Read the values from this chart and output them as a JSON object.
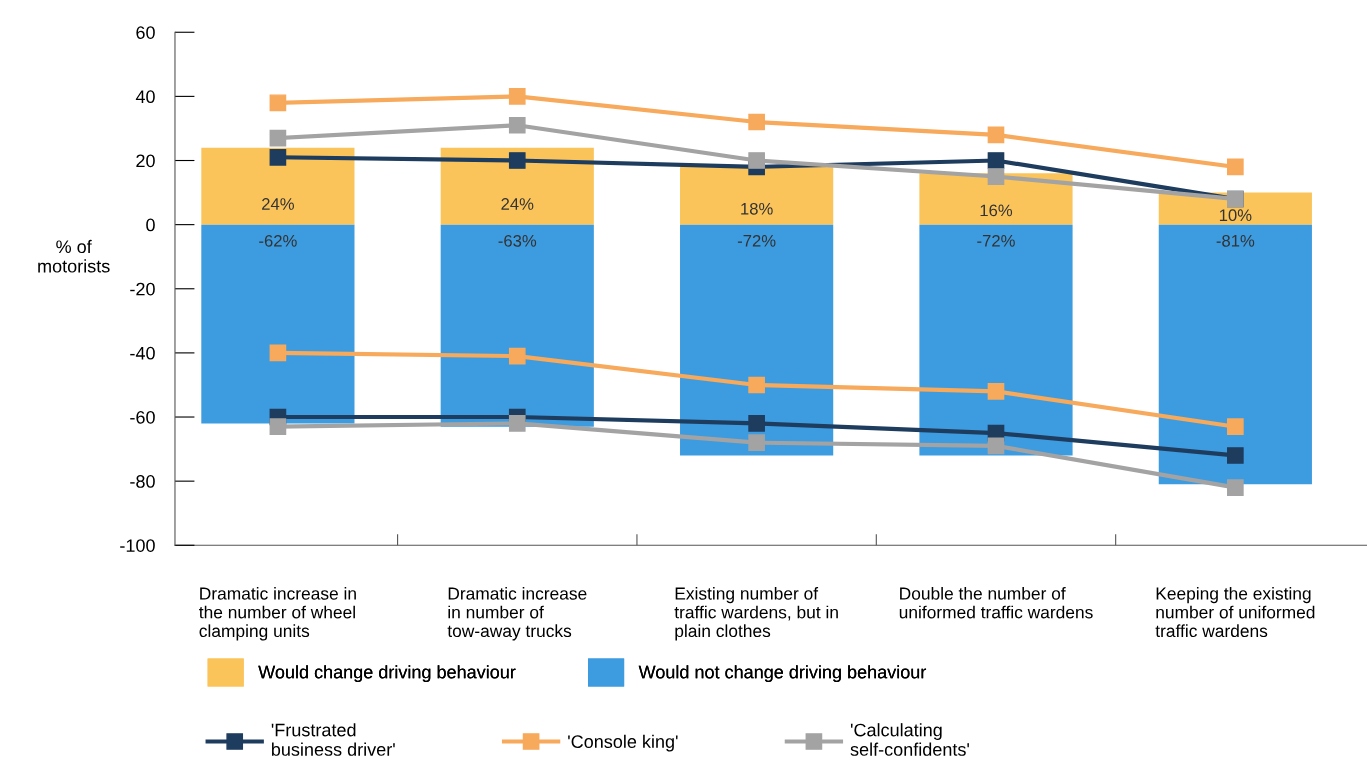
{
  "chart_data": {
    "type": "bar",
    "ylabel": "% of\nmotorists",
    "categories": [
      "Dramatic increase in\nthe number of wheel\nclamping units",
      "Dramatic increase\nin number of\ntow-away trucks",
      "Existing number of\ntraffic wardens, but in\nplain clothes",
      "Double the number of\nuniformed traffic wardens",
      "Keeping the existing\nnumber of uniformed\ntraffic wardens"
    ],
    "stacked": true,
    "ylim": [
      -100,
      60
    ],
    "yticks": [
      -100,
      -80,
      -60,
      -40,
      -20,
      0,
      20,
      40,
      60
    ],
    "grid": false,
    "legend": "bottom",
    "marker": "square",
    "line_style": "solid",
    "series": [
      {
        "name": "Would change driving behaviour",
        "color": "#fbc45a",
        "values": [
          24,
          24,
          18,
          16,
          10
        ],
        "value_labels": [
          "24%",
          "24%",
          "18%",
          "16%",
          "10%"
        ]
      },
      {
        "name": "Would not change driving behaviour",
        "color": "#3d9be0",
        "values": [
          -62,
          -63,
          -72,
          -72,
          -81
        ],
        "value_labels": [
          "-62%",
          "-63%",
          "-72%",
          "-72%",
          "-81%"
        ]
      },
      {
        "name": "'Frustrated\nbusiness driver'",
        "type": "line",
        "color": "#1e3c5e",
        "values": [
          21,
          20,
          18,
          20,
          8
        ]
      },
      {
        "name": "'Console king'",
        "type": "line",
        "color": "#f7a95c",
        "values": [
          38,
          40,
          32,
          28,
          18
        ]
      },
      {
        "name": "'Calculating\nself-confidents'",
        "type": "line",
        "color": "#a3a3a3",
        "values": [
          27,
          31,
          20,
          15,
          8
        ]
      },
      {
        "type": "line",
        "color": "#1e3c5e",
        "values": [
          -60,
          -60,
          -62,
          -65,
          -72
        ]
      },
      {
        "type": "line",
        "color": "#f7a95c",
        "values": [
          -40,
          -41,
          -50,
          -52,
          -63
        ]
      },
      {
        "type": "line",
        "color": "#a3a3a3",
        "values": [
          -63,
          -62,
          -68,
          -69,
          -82
        ]
      }
    ]
  }
}
